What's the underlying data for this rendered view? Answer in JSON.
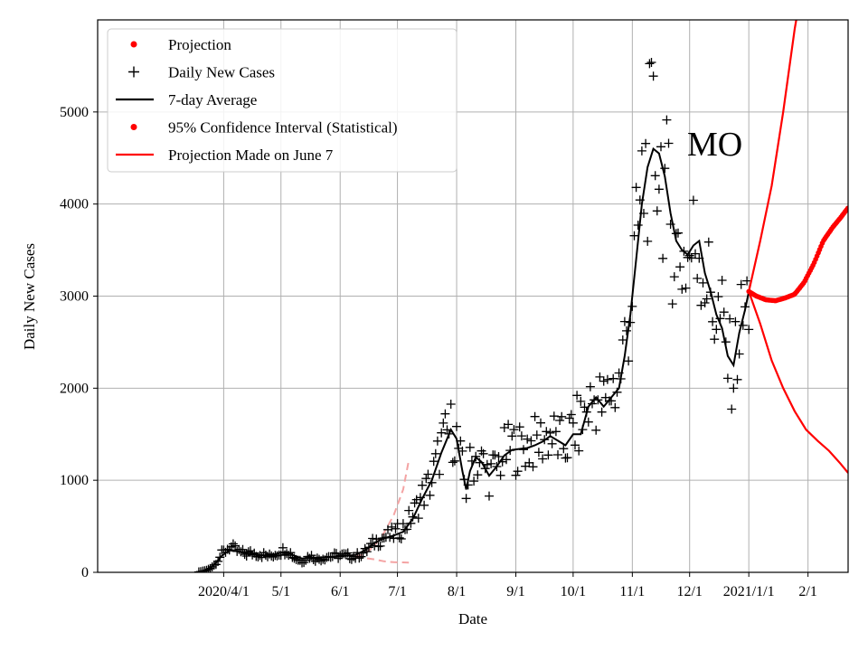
{
  "chart_data": {
    "type": "scatter",
    "title": "",
    "annotation": "MO",
    "xlabel": "Date",
    "ylabel": "Daily New Cases",
    "ylim": [
      0,
      6000
    ],
    "xlim_day_index": [
      -35,
      358
    ],
    "date_origin": "2020-03-01",
    "grid": true,
    "legend_position": "top-left",
    "x_ticks": [
      {
        "label": "2020/4/1",
        "day": 31
      },
      {
        "label": "5/1",
        "day": 61
      },
      {
        "label": "6/1",
        "day": 92
      },
      {
        "label": "7/1",
        "day": 122
      },
      {
        "label": "8/1",
        "day": 153
      },
      {
        "label": "9/1",
        "day": 184
      },
      {
        "label": "10/1",
        "day": 214
      },
      {
        "label": "11/1",
        "day": 245
      },
      {
        "label": "12/1",
        "day": 275
      },
      {
        "label": "2021/1/1",
        "day": 306
      },
      {
        "label": "2/1",
        "day": 337
      }
    ],
    "y_ticks": [
      {
        "label": "0",
        "value": 0
      },
      {
        "label": "1000",
        "value": 1000
      },
      {
        "label": "2000",
        "value": 2000
      },
      {
        "label": "3000",
        "value": 3000
      },
      {
        "label": "4000",
        "value": 4000
      },
      {
        "label": "5000",
        "value": 5000
      }
    ],
    "legend": [
      {
        "label": "Projection",
        "marker": "dot",
        "color": "#ff0000"
      },
      {
        "label": "Daily New Cases",
        "marker": "plus",
        "color": "#000000"
      },
      {
        "label": "7-day Average",
        "marker": "line",
        "color": "#000000"
      },
      {
        "label": "95% Confidence Interval (Statistical)",
        "marker": "dot",
        "color": "#ff0000"
      },
      {
        "label": "Projection Made on June 7",
        "marker": "line",
        "color": "#ff0000"
      }
    ],
    "daily_new_cases_anchors": [
      [
        18,
        5
      ],
      [
        22,
        20
      ],
      [
        26,
        80
      ],
      [
        30,
        200
      ],
      [
        34,
        280
      ],
      [
        38,
        230
      ],
      [
        42,
        200
      ],
      [
        46,
        210
      ],
      [
        50,
        200
      ],
      [
        55,
        170
      ],
      [
        60,
        220
      ],
      [
        64,
        250
      ],
      [
        68,
        160
      ],
      [
        72,
        120
      ],
      [
        76,
        180
      ],
      [
        80,
        140
      ],
      [
        85,
        170
      ],
      [
        90,
        180
      ],
      [
        95,
        180
      ],
      [
        100,
        170
      ],
      [
        105,
        220
      ],
      [
        110,
        330
      ],
      [
        115,
        380
      ],
      [
        120,
        410
      ],
      [
        125,
        480
      ],
      [
        130,
        620
      ],
      [
        135,
        830
      ],
      [
        140,
        1000
      ],
      [
        145,
        1380
      ],
      [
        150,
        1550
      ],
      [
        153,
        1450
      ],
      [
        156,
        1100
      ],
      [
        158,
        900
      ],
      [
        160,
        1150
      ],
      [
        163,
        1250
      ],
      [
        166,
        1200
      ],
      [
        170,
        1050
      ],
      [
        174,
        1150
      ],
      [
        178,
        1300
      ],
      [
        182,
        1360
      ],
      [
        186,
        1340
      ],
      [
        190,
        1380
      ],
      [
        194,
        1400
      ],
      [
        198,
        1450
      ],
      [
        202,
        1500
      ],
      [
        206,
        1420
      ],
      [
        210,
        1380
      ],
      [
        214,
        1560
      ],
      [
        218,
        1600
      ],
      [
        222,
        1800
      ],
      [
        226,
        1900
      ],
      [
        230,
        1800
      ],
      [
        234,
        2000
      ],
      [
        238,
        2050
      ],
      [
        241,
        2500
      ],
      [
        244,
        2900
      ],
      [
        247,
        3500
      ],
      [
        250,
        4100
      ],
      [
        253,
        4500
      ],
      [
        256,
        4650
      ],
      [
        259,
        4500
      ],
      [
        262,
        4200
      ],
      [
        265,
        3800
      ],
      [
        268,
        3500
      ],
      [
        271,
        3450
      ],
      [
        274,
        3400
      ],
      [
        277,
        3550
      ],
      [
        280,
        3600
      ],
      [
        283,
        3250
      ],
      [
        286,
        3000
      ],
      [
        289,
        2800
      ],
      [
        292,
        2700
      ],
      [
        295,
        2300
      ],
      [
        298,
        2200
      ],
      [
        301,
        2600
      ],
      [
        304,
        2800
      ],
      [
        306,
        3000
      ]
    ],
    "seven_day_average_anchors": [
      [
        18,
        5
      ],
      [
        22,
        20
      ],
      [
        26,
        80
      ],
      [
        30,
        180
      ],
      [
        34,
        240
      ],
      [
        38,
        230
      ],
      [
        42,
        210
      ],
      [
        46,
        200
      ],
      [
        50,
        190
      ],
      [
        55,
        180
      ],
      [
        60,
        210
      ],
      [
        64,
        220
      ],
      [
        68,
        180
      ],
      [
        72,
        150
      ],
      [
        76,
        160
      ],
      [
        80,
        160
      ],
      [
        85,
        165
      ],
      [
        90,
        170
      ],
      [
        95,
        180
      ],
      [
        100,
        190
      ],
      [
        105,
        240
      ],
      [
        110,
        320
      ],
      [
        115,
        370
      ],
      [
        120,
        400
      ],
      [
        125,
        440
      ],
      [
        130,
        580
      ],
      [
        135,
        800
      ],
      [
        140,
        1000
      ],
      [
        145,
        1300
      ],
      [
        150,
        1550
      ],
      [
        153,
        1450
      ],
      [
        156,
        1100
      ],
      [
        158,
        900
      ],
      [
        160,
        1100
      ],
      [
        163,
        1250
      ],
      [
        166,
        1200
      ],
      [
        170,
        1050
      ],
      [
        174,
        1150
      ],
      [
        178,
        1270
      ],
      [
        182,
        1330
      ],
      [
        186,
        1340
      ],
      [
        190,
        1350
      ],
      [
        194,
        1380
      ],
      [
        198,
        1420
      ],
      [
        202,
        1480
      ],
      [
        206,
        1430
      ],
      [
        210,
        1380
      ],
      [
        214,
        1500
      ],
      [
        218,
        1500
      ],
      [
        222,
        1800
      ],
      [
        226,
        1900
      ],
      [
        230,
        1800
      ],
      [
        234,
        1900
      ],
      [
        238,
        2000
      ],
      [
        241,
        2350
      ],
      [
        244,
        2800
      ],
      [
        247,
        3400
      ],
      [
        250,
        4000
      ],
      [
        253,
        4400
      ],
      [
        256,
        4600
      ],
      [
        259,
        4550
      ],
      [
        262,
        4300
      ],
      [
        265,
        3900
      ],
      [
        268,
        3600
      ],
      [
        271,
        3500
      ],
      [
        274,
        3450
      ],
      [
        277,
        3550
      ],
      [
        280,
        3600
      ],
      [
        283,
        3250
      ],
      [
        286,
        3050
      ],
      [
        289,
        2800
      ],
      [
        292,
        2650
      ],
      [
        295,
        2350
      ],
      [
        298,
        2250
      ],
      [
        301,
        2600
      ],
      [
        304,
        2850
      ],
      [
        306,
        3050
      ]
    ],
    "projection_points": [
      [
        306,
        3050
      ],
      [
        310,
        3000
      ],
      [
        315,
        2960
      ],
      [
        320,
        2950
      ],
      [
        325,
        2980
      ],
      [
        330,
        3020
      ],
      [
        335,
        3150
      ],
      [
        340,
        3350
      ],
      [
        345,
        3600
      ],
      [
        350,
        3750
      ],
      [
        354,
        3850
      ],
      [
        358,
        3960
      ]
    ],
    "confidence_upper": [
      [
        306,
        3050
      ],
      [
        312,
        3600
      ],
      [
        318,
        4200
      ],
      [
        324,
        5000
      ],
      [
        330,
        5900
      ],
      [
        335,
        6500
      ]
    ],
    "confidence_lower": [
      [
        306,
        3050
      ],
      [
        312,
        2700
      ],
      [
        318,
        2300
      ],
      [
        324,
        2000
      ],
      [
        330,
        1750
      ],
      [
        336,
        1550
      ],
      [
        342,
        1430
      ],
      [
        348,
        1320
      ],
      [
        354,
        1180
      ],
      [
        358,
        1080
      ]
    ],
    "june7_projection_upper": [
      [
        100,
        170
      ],
      [
        105,
        200
      ],
      [
        110,
        290
      ],
      [
        115,
        430
      ],
      [
        120,
        620
      ],
      [
        125,
        900
      ],
      [
        128,
        1220
      ]
    ],
    "june7_projection_lower": [
      [
        100,
        170
      ],
      [
        105,
        155
      ],
      [
        110,
        140
      ],
      [
        115,
        120
      ],
      [
        120,
        110
      ],
      [
        125,
        108
      ],
      [
        128,
        105
      ]
    ]
  }
}
